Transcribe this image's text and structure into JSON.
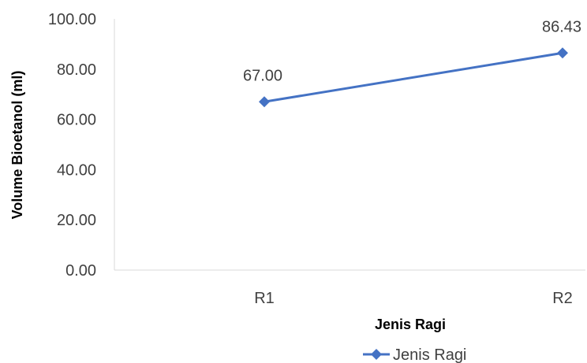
{
  "chart_data": {
    "type": "line",
    "categories": [
      "R1",
      "R2"
    ],
    "series": [
      {
        "name": "Jenis Ragi",
        "values": [
          67.0,
          86.43
        ],
        "color": "#4472C4"
      }
    ],
    "data_labels": [
      "67.00",
      "86.43"
    ],
    "title": "",
    "xlabel": "Jenis Ragi",
    "ylabel": "Volume Bioetanol (ml)",
    "ylim": [
      0,
      100
    ],
    "yticks": [
      "0.00",
      "20.00",
      "40.00",
      "60.00",
      "80.00",
      "100.00"
    ],
    "grid": false,
    "legend": "bottom"
  }
}
